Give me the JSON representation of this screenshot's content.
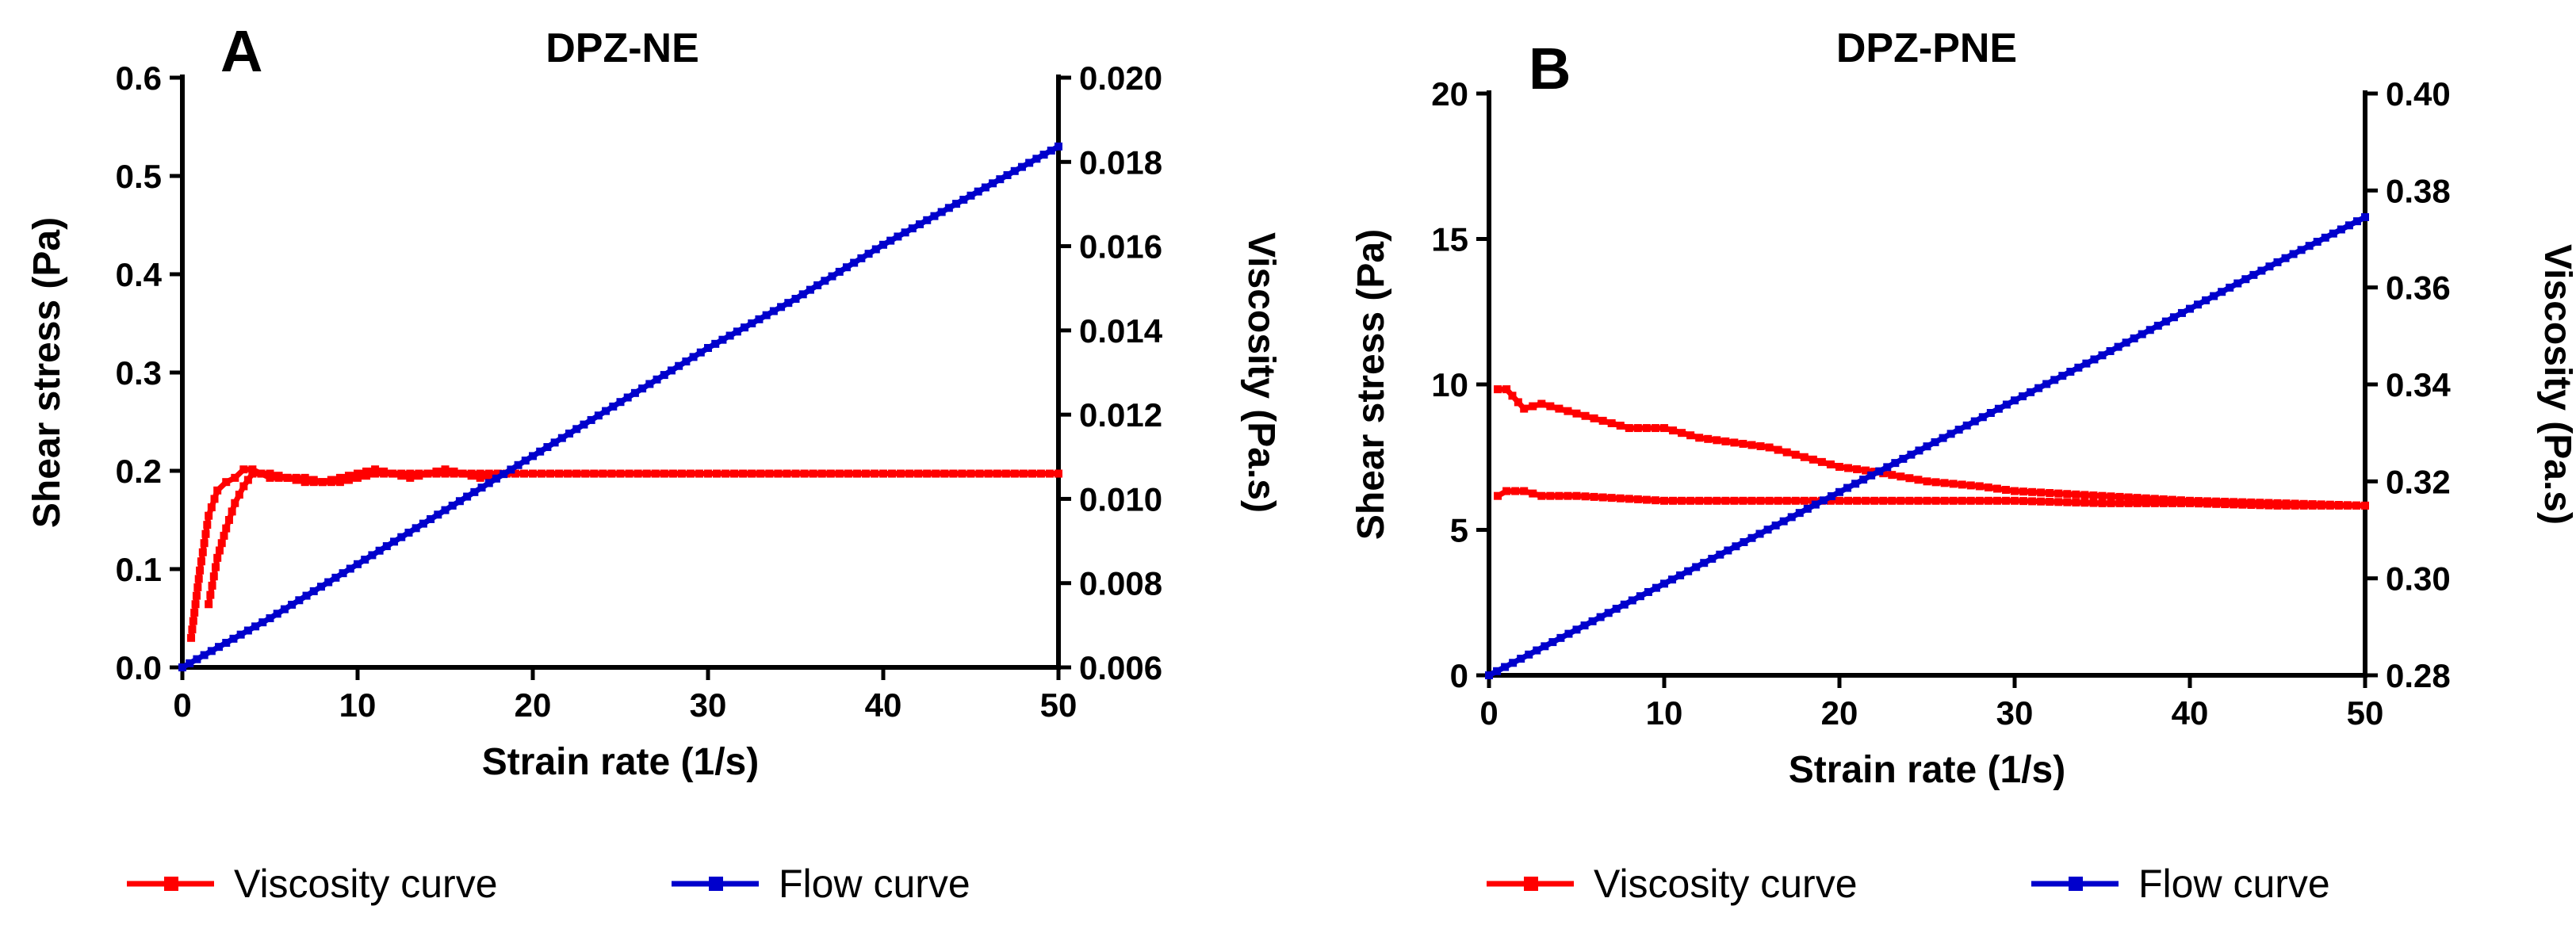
{
  "chart_data": [
    {
      "type": "line",
      "panel_label": "A",
      "title": "DPZ-NE",
      "xlabel": "Strain rate (1/s)",
      "ylabel": "Shear stress (Pa)",
      "y2label": "Viscosity (Pa.s)",
      "xlim": [
        0,
        50
      ],
      "ylim": [
        0,
        0.6
      ],
      "y2lim": [
        0.006,
        0.02
      ],
      "xticks": [
        "0",
        "10",
        "20",
        "30",
        "40",
        "50"
      ],
      "yticks": [
        "0.0",
        "0.1",
        "0.2",
        "0.3",
        "0.4",
        "0.5",
        "0.6"
      ],
      "y2ticks": [
        "0.006",
        "0.008",
        "0.010",
        "0.012",
        "0.014",
        "0.016",
        "0.018",
        "0.020"
      ],
      "grid": false,
      "legend_position": "bottom",
      "series": [
        {
          "name": "Viscosity curve",
          "axis": "right",
          "color": "#ff0000",
          "marker": "square",
          "x": [
            0.5,
            1,
            1.5,
            2,
            2.5,
            3,
            3.5,
            4,
            4.5,
            5,
            6,
            7,
            8,
            9,
            10,
            11,
            12,
            13,
            14,
            15,
            16,
            17,
            18,
            19,
            20,
            22,
            24,
            26,
            28,
            30,
            32,
            34,
            36,
            38,
            40,
            42,
            44,
            46,
            48,
            50
          ],
          "values": [
            0.0067,
            0.0083,
            0.0096,
            0.0102,
            0.0104,
            0.0105,
            0.0107,
            0.0107,
            0.0106,
            0.0106,
            0.0105,
            0.0105,
            0.0104,
            0.0104,
            0.0105,
            0.0106,
            0.0106,
            0.0106,
            0.0106,
            0.0106,
            0.0106,
            0.0105,
            0.0106,
            0.0106,
            0.0106,
            0.0106,
            0.0106,
            0.0106,
            0.0106,
            0.0106,
            0.0106,
            0.0106,
            0.0106,
            0.0106,
            0.0106,
            0.0106,
            0.0106,
            0.0106,
            0.0106,
            0.0106
          ]
        },
        {
          "name": "Viscosity curve",
          "axis": "right",
          "color": "#ff0000",
          "marker": "square",
          "x": [
            50,
            45,
            40,
            35,
            30,
            25,
            20,
            18,
            16,
            15,
            14,
            13,
            12,
            11,
            10,
            9,
            8,
            7,
            6,
            5,
            4.5,
            4,
            3.5,
            3,
            2.5,
            2,
            1.5
          ],
          "values": [
            0.0106,
            0.0106,
            0.0106,
            0.0106,
            0.0106,
            0.0106,
            0.0106,
            0.0106,
            0.0106,
            0.0107,
            0.0106,
            0.0105,
            0.0106,
            0.0107,
            0.0106,
            0.0105,
            0.0104,
            0.0104,
            0.0105,
            0.0105,
            0.0106,
            0.0106,
            0.0103,
            0.0099,
            0.0093,
            0.0086,
            0.0075
          ]
        },
        {
          "name": "Flow curve",
          "axis": "left",
          "color": "#0000cc",
          "marker": "square",
          "x": [
            0,
            5,
            10,
            15,
            20,
            25,
            30,
            35,
            40,
            45,
            50
          ],
          "values": [
            0.0,
            0.05,
            0.105,
            0.16,
            0.215,
            0.27,
            0.325,
            0.375,
            0.43,
            0.48,
            0.53
          ]
        }
      ]
    },
    {
      "type": "line",
      "panel_label": "B",
      "title": "DPZ-PNE",
      "xlabel": "Strain rate (1/s)",
      "ylabel": "Shear stress (Pa)",
      "y2label": "Viscosity (Pa.s)",
      "xlim": [
        0,
        50
      ],
      "ylim": [
        0,
        20
      ],
      "y2lim": [
        0.28,
        0.4
      ],
      "xticks": [
        "0",
        "10",
        "20",
        "30",
        "40",
        "50"
      ],
      "yticks": [
        "0",
        "5",
        "10",
        "15",
        "20"
      ],
      "y2ticks": [
        "0.28",
        "0.30",
        "0.32",
        "0.34",
        "0.36",
        "0.38",
        "0.40"
      ],
      "grid": false,
      "legend_position": "bottom",
      "series": [
        {
          "name": "Viscosity curve",
          "axis": "right",
          "color": "#ff0000",
          "marker": "square",
          "x": [
            0.5,
            1,
            2,
            3,
            4,
            5,
            6,
            7,
            8,
            9,
            10,
            12,
            14,
            16,
            18,
            20,
            22,
            25,
            28,
            30,
            35,
            40,
            45,
            50
          ],
          "values": [
            0.339,
            0.339,
            0.335,
            0.336,
            0.335,
            0.334,
            0.333,
            0.332,
            0.331,
            0.331,
            0.331,
            0.329,
            0.328,
            0.327,
            0.325,
            0.323,
            0.322,
            0.32,
            0.319,
            0.318,
            0.317,
            0.316,
            0.3155,
            0.315
          ]
        },
        {
          "name": "Viscosity curve",
          "axis": "right",
          "color": "#ff0000",
          "marker": "square",
          "x": [
            50,
            45,
            40,
            35,
            30,
            25,
            20,
            15,
            10,
            5,
            3,
            2,
            1,
            0.5
          ],
          "values": [
            0.315,
            0.315,
            0.3155,
            0.3155,
            0.316,
            0.316,
            0.316,
            0.316,
            0.316,
            0.317,
            0.317,
            0.318,
            0.318,
            0.317
          ]
        },
        {
          "name": "Flow curve",
          "axis": "left",
          "color": "#0000cc",
          "marker": "square",
          "x": [
            0,
            5,
            10,
            15,
            20,
            25,
            30,
            35,
            40,
            45,
            50
          ],
          "values": [
            0.0,
            1.57,
            3.15,
            4.72,
            6.3,
            7.87,
            9.45,
            11.0,
            12.6,
            14.2,
            15.75
          ]
        }
      ]
    }
  ],
  "legends": [
    {
      "items": [
        {
          "label": "Viscosity curve",
          "color": "#ff0000"
        },
        {
          "label": "Flow curve",
          "color": "#0000cc"
        }
      ]
    },
    {
      "items": [
        {
          "label": "Viscosity curve",
          "color": "#ff0000"
        },
        {
          "label": "Flow curve",
          "color": "#0000cc"
        }
      ]
    }
  ]
}
